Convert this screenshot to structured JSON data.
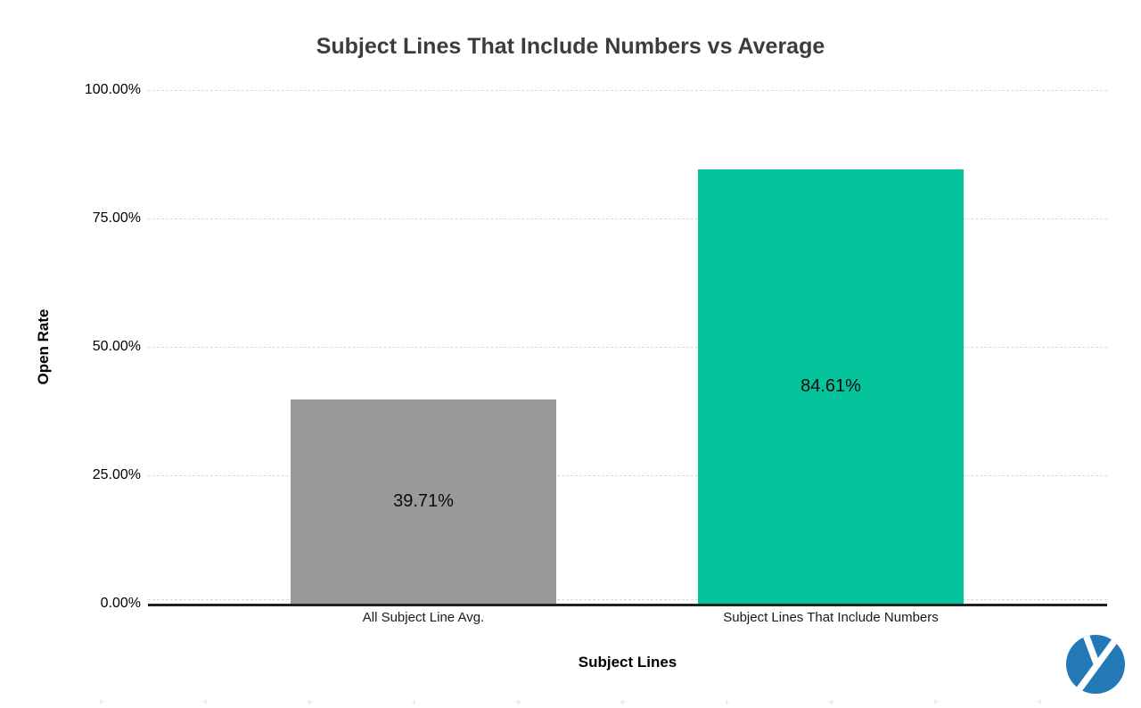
{
  "page": {
    "background": "#ffffff"
  },
  "chart_data": {
    "type": "bar",
    "title": "Subject Lines That Include Numbers vs Average",
    "xlabel": "Subject Lines",
    "ylabel": "Open Rate",
    "categories": [
      "All Subject Line Avg.",
      "Subject Lines That Include Numbers"
    ],
    "series": [
      {
        "name": "Open Rate",
        "values": [
          39.71,
          84.61
        ],
        "value_labels": [
          "39.71%",
          "84.61%"
        ],
        "bar_colors": [
          "#9a9a9a",
          "#05c49c"
        ]
      }
    ],
    "ylim": [
      0,
      100
    ],
    "yticks": [
      {
        "value": 0,
        "label": "0.00%"
      },
      {
        "value": 25,
        "label": "25.00%"
      },
      {
        "value": 50,
        "label": "50.00%"
      },
      {
        "value": 75,
        "label": "75.00%"
      },
      {
        "value": 100,
        "label": "100.00%"
      }
    ],
    "grid": true,
    "legend_position": "none",
    "bar_label_position": "inside-center",
    "title_color": "#3c3c3c",
    "gridline_color": "#d9d9d9",
    "axis_line_color": "#212121"
  },
  "branding": {
    "logo_name": "yesware-logo",
    "logo_color": "#2279b5"
  }
}
